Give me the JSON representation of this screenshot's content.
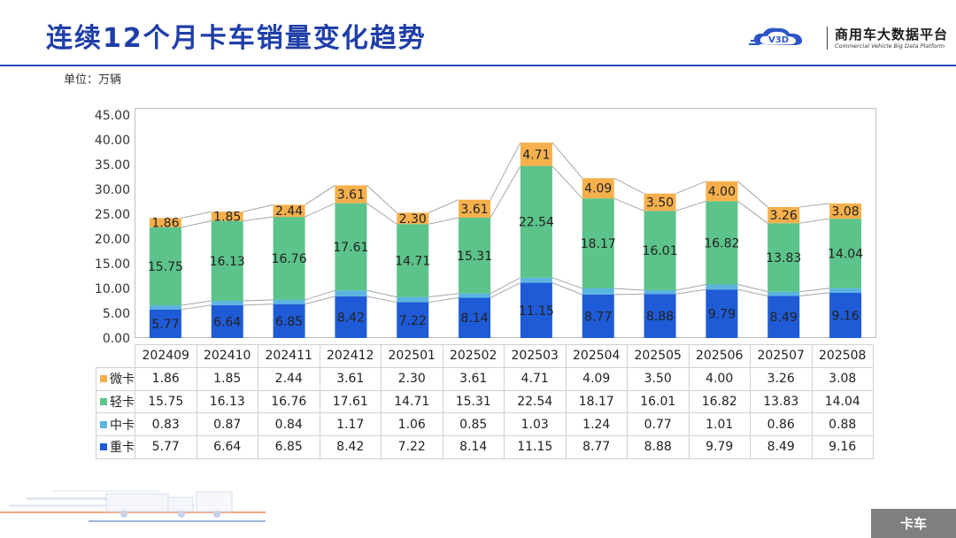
{
  "page": {
    "title": "连续12个月卡车销量变化趋势",
    "unit": "单位：万辆",
    "tag": "卡车"
  },
  "brand": {
    "logo_text": "V3D",
    "name_cn": "商用车大数据平台",
    "name_en": "Commercial Vehicle Big Data Platform"
  },
  "chart_data": {
    "type": "bar",
    "stacked": true,
    "categories": [
      "202409",
      "202410",
      "202411",
      "202412",
      "202501",
      "202502",
      "202503",
      "202504",
      "202505",
      "202506",
      "202507",
      "202508"
    ],
    "ylim": [
      0,
      45
    ],
    "yticks": [
      "0.00",
      "5.00",
      "10.00",
      "15.00",
      "20.00",
      "25.00",
      "30.00",
      "35.00",
      "40.00",
      "45.00"
    ],
    "grid": false,
    "series": [
      {
        "name": "重卡",
        "color": "#1f5bd6",
        "values": [
          5.77,
          6.64,
          6.85,
          8.42,
          7.22,
          8.14,
          11.15,
          8.77,
          8.88,
          9.79,
          8.49,
          9.16
        ]
      },
      {
        "name": "中卡",
        "color": "#5ab4e0",
        "values": [
          0.83,
          0.87,
          0.84,
          1.17,
          1.06,
          0.85,
          1.03,
          1.24,
          0.77,
          1.01,
          0.86,
          0.88
        ]
      },
      {
        "name": "轻卡",
        "color": "#5cc38a",
        "values": [
          15.75,
          16.13,
          16.76,
          17.61,
          14.71,
          15.31,
          22.54,
          18.17,
          16.01,
          16.82,
          13.83,
          14.04
        ]
      },
      {
        "name": "微卡",
        "color": "#f5b04c",
        "values": [
          1.86,
          1.85,
          2.44,
          3.61,
          2.3,
          3.61,
          4.71,
          4.09,
          3.5,
          4.0,
          3.26,
          3.08
        ]
      }
    ],
    "table_rows": [
      {
        "name": "微卡",
        "color": "#f5b04c",
        "values": [
          "1.86",
          "1.85",
          "2.44",
          "3.61",
          "2.30",
          "3.61",
          "4.71",
          "4.09",
          "3.50",
          "4.00",
          "3.26",
          "3.08"
        ]
      },
      {
        "name": "轻卡",
        "color": "#5cc38a",
        "values": [
          "15.75",
          "16.13",
          "16.76",
          "17.61",
          "14.71",
          "15.31",
          "22.54",
          "18.17",
          "16.01",
          "16.82",
          "13.83",
          "14.04"
        ]
      },
      {
        "name": "中卡",
        "color": "#5ab4e0",
        "values": [
          "0.83",
          "0.87",
          "0.84",
          "1.17",
          "1.06",
          "0.85",
          "1.03",
          "1.24",
          "0.77",
          "1.01",
          "0.86",
          "0.88"
        ]
      },
      {
        "name": "重卡",
        "color": "#1f5bd6",
        "values": [
          "5.77",
          "6.64",
          "6.85",
          "8.42",
          "7.22",
          "8.14",
          "11.15",
          "8.77",
          "8.88",
          "9.79",
          "8.49",
          "9.16"
        ]
      }
    ],
    "bar_labels_shown_for": [
      "重卡",
      "轻卡",
      "微卡"
    ]
  }
}
